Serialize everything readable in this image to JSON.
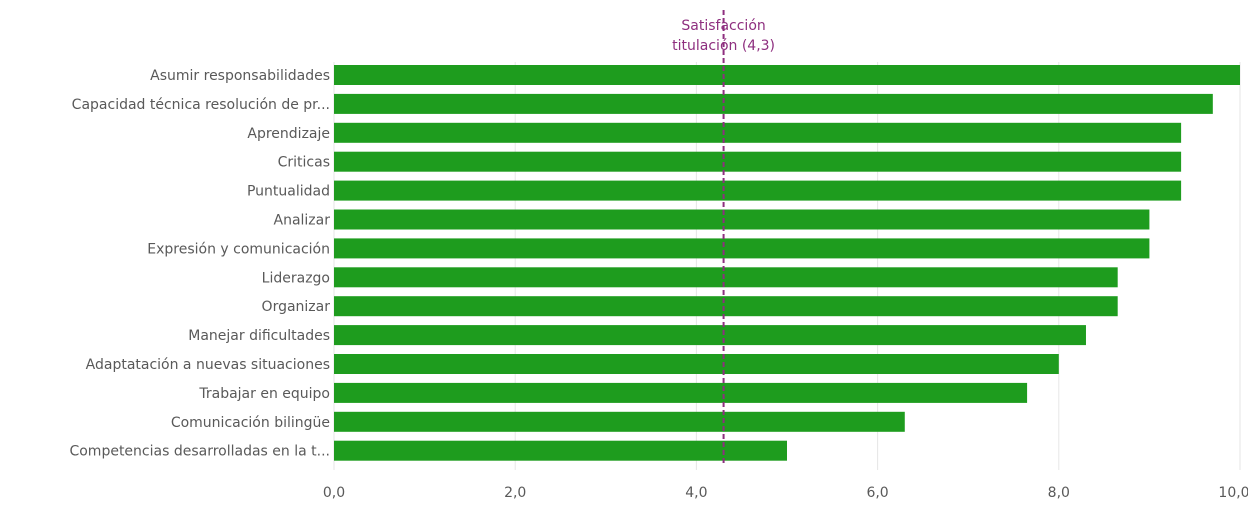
{
  "chart_data": {
    "type": "bar",
    "orientation": "horizontal",
    "categories": [
      "Asumir responsabilidades",
      "Capacidad técnica resolución de pr...",
      "Aprendizaje",
      "Criticas",
      "Puntualidad",
      "Analizar",
      "Expresión y comunicación",
      "Liderazgo",
      "Organizar",
      "Manejar dificultades",
      "Adaptatación a nuevas situaciones",
      "Trabajar en equipo",
      "Comunicación bilingüe",
      "Competencias desarrolladas en la t..."
    ],
    "values": [
      10.0,
      9.7,
      9.35,
      9.35,
      9.35,
      9.0,
      9.0,
      8.65,
      8.65,
      8.3,
      8.0,
      7.65,
      6.3,
      5.0
    ],
    "xlim": [
      0,
      10
    ],
    "xticks": [
      "0,0",
      "2,0",
      "4,0",
      "6,0",
      "8,0",
      "10,0"
    ],
    "grid": true,
    "bar_color": "#1e9c1e",
    "reference_line": {
      "value": 4.3,
      "label_line1": "Satisfacción",
      "label_line2": "titulación (4,3)",
      "color": "#8e2f7f"
    }
  }
}
